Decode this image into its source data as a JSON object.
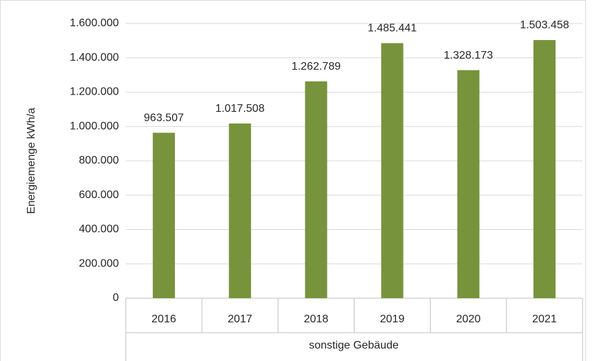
{
  "chart_data": {
    "type": "bar",
    "y_label": "Energiemenge kWh/a",
    "group_label": "sonstige Gebäude",
    "categories": [
      "2016",
      "2017",
      "2018",
      "2019",
      "2020",
      "2021"
    ],
    "values": [
      963507,
      1017508,
      1262789,
      1485441,
      1328173,
      1503458
    ],
    "value_labels": [
      "963.507",
      "1.017.508",
      "1.262.789",
      "1.485.441",
      "1.328.173",
      "1.503.458"
    ],
    "color": "#77933c",
    "ylim": [
      0,
      1600000
    ],
    "yticks": [
      0,
      {
        "value": 200000,
        "label": "200.000"
      },
      {
        "value": 400000,
        "label": "400.000"
      },
      {
        "value": 600000,
        "label": "600.000"
      },
      {
        "value": 800000,
        "label": "800.000"
      },
      {
        "value": 1000000,
        "label": "1.000.000"
      },
      {
        "value": 1200000,
        "label": "1.200.000"
      },
      {
        "value": 1400000,
        "label": "1.400.000"
      },
      {
        "value": 1600000,
        "label": "1.600.000"
      }
    ],
    "grid": true
  }
}
